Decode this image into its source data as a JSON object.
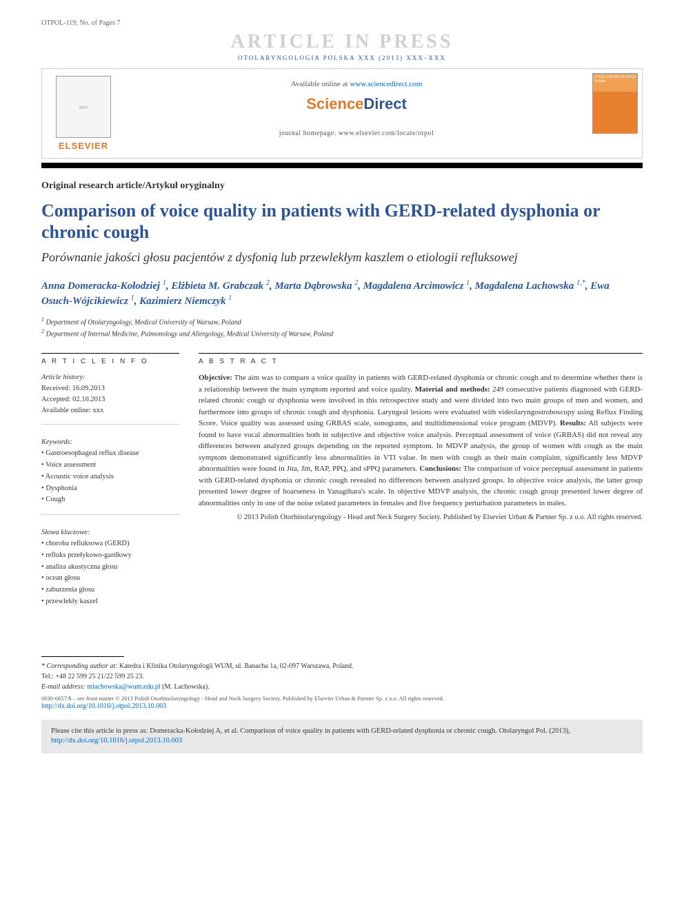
{
  "header": {
    "article_id": "OTPOL-119; No. of Pages 7",
    "watermark": "ARTICLE IN PRESS",
    "journal_line": "OTOLARYNGOLOGIA POLSKA XXX (2013) XXX–XXX",
    "available_prefix": "Available online at ",
    "available_url": "www.sciencedirect.com",
    "sd_logo_1": "Science",
    "sd_logo_2": "Direct",
    "homepage_label": "journal homepage: www.elsevier.com/locate/otpol",
    "elsevier": "ELSEVIER",
    "cover_label": "OTOLARYNGOLOGIA Polska"
  },
  "article": {
    "type": "Original research article/Artykuł oryginalny",
    "title_en": "Comparison of voice quality in patients with GERD-related dysphonia or chronic cough",
    "title_pl": "Porównanie jakości głosu pacjentów z dysfonią lub przewlekłym kaszlem o etiologii refluksowej"
  },
  "authors_html": "Anna Domeracka-Kołodziej <sup>1</sup>, Elżbieta M. Grabczak <sup>2</sup>, Marta Dąbrowska <sup>2</sup>, Magdalena Arcimowicz <sup>1</sup>, Magdalena Lachowska <sup>1,*</sup>, Ewa Osuch-Wójcikiewicz <sup>1</sup>, Kazimierz Niemczyk <sup>1</sup>",
  "affiliations": [
    "1 Department of Otolaryngology, Medical University of Warsaw, Poland",
    "2 Department of Internal Medicine, Pulmonology and Allergology, Medical University of Warsaw, Poland"
  ],
  "info": {
    "header": "A R T I C L E  I N F O",
    "history_label": "Article history:",
    "received": "Received: 16.09.2013",
    "accepted": "Accepted: 02.10.2013",
    "online": "Available online: xxx",
    "keywords_label": "Keywords:",
    "keywords": [
      "Gastroesophageal reflux disease",
      "Voice assessment",
      "Acoustic voice analysis",
      "Dysphonia",
      "Cough"
    ],
    "slowa_label": "Słowa kluczowe:",
    "slowa": [
      "choroba refluksowa (GERD)",
      "refluks przełykowo-gardłowy",
      "analiza akustyczna głosu",
      "ocean głosu",
      "zaburzenia głosu",
      "przewlekły kaszel"
    ]
  },
  "abstract": {
    "header": "A B S T R A C T",
    "body": "<b>Objective:</b> The aim was to compare a voice quality in patients with GERD-related dysphonia or chronic cough and to determine whether there is a relationship between the main symptom reported and voice quality. <b>Material and methods:</b> 249 consecutive patients diagnosed with GERD-related chronic cough or dysphonia were involved in this retrospective study and were divided into two main groups of men and women, and furthermore into groups of chronic cough and dysphonia. Laryngeal lesions were evaluated with videolaryngostroboscopy using Reflux Finding Score. Voice quality was assessed using GRBAS scale, sonograms, and multidimensional voice program (MDVP). <b>Results:</b> All subjects were found to have vocal abnormalities both in subjective and objective voice analysis. Perceptual assessment of voice (GRBAS) did not reveal any differences between analyzed groups depending on the reported symptom. In MDVP analysis, the group of women with cough as the main symptom demonstrated significantly less abnormalities in VTI value. In men with cough as their main complaint, significantly less MDVP abnormalities were found in Jita, Jitt, RAP, PPQ, and sPPQ parameters. <b>Conclusions:</b> The comparison of voice perceptual assessment in patients with GERD-related dysphonia or chronic cough revealed no differences between analyzed groups. In objective voice analysis, the latter group presented lower degree of hoarseness in Yanagihara's scale. In objective MDVP analysis, the chronic cough group presented lower degree of abnormalities only in one of the noise related parameters in females and five frequency perturbation parameters in males.",
    "copyright": "© 2013 Polish Otorhinolaryngology - Head and Neck Surgery Society. Published by Elsevier Urban & Partner Sp. z o.o. All rights reserved."
  },
  "footer": {
    "corr_label": "* Corresponding author at:",
    "corr_addr": " Katedra i Klinika Otolaryngologii WUM, ul. Banacha 1a, 02-097 Warszawa, Poland.",
    "tel": "Tel.: +48 22 599 25 21/22 599 25 23.",
    "email_label": "E-mail address: ",
    "email": "mlachowska@wum.edu.pl",
    "email_suffix": " (M. Lachowska).",
    "issn": "0030-6657/$ – see front matter © 2013 Polish Otorhinolaryngology - Head and Neck Surgery Society. Published by Elsevier Urban & Partner Sp. z o.o. All rights reserved.",
    "doi": "http://dx.doi.org/10.1016/j.otpol.2013.10.003"
  },
  "citebox": {
    "text": "Please cite this article in press as: Domeracka-Kołodziej A, et al. Comparison of voice quality in patients with GERD-related dysphonia or chronic cough. Otolaryngol Pol. (2013), ",
    "link": "http://dx.doi.org/10.1016/j.otpol.2013.10.003"
  }
}
